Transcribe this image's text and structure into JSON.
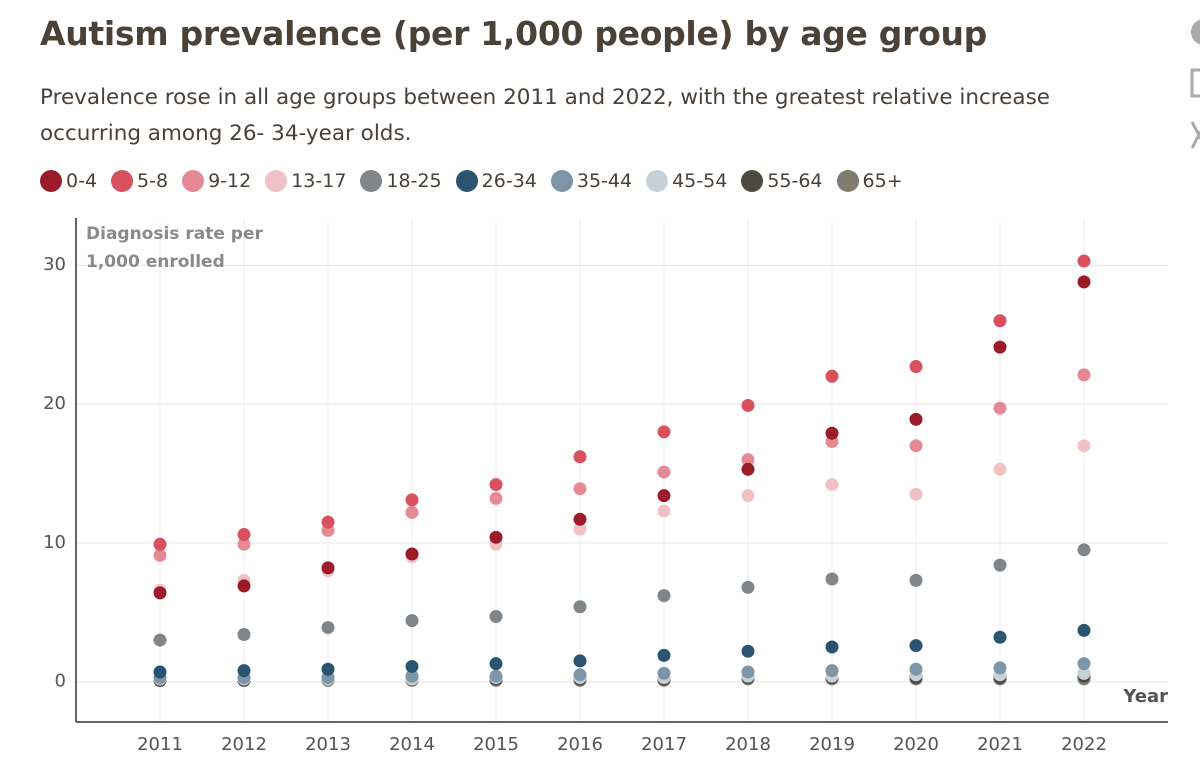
{
  "chart_data": {
    "type": "scatter",
    "title": "Autism prevalence (per 1,000 people) by age group",
    "subtitle": "Prevalence rose in all age groups between 2011 and 2022, with the greatest relative increase occurring among 26- 34-year olds.",
    "y_label": "Diagnosis rate per 1,000 enrolled",
    "x_label": "Year",
    "x": [
      2011,
      2012,
      2013,
      2014,
      2015,
      2016,
      2017,
      2018,
      2019,
      2020,
      2021,
      2022
    ],
    "xlim": [
      2010,
      2023
    ],
    "xticks": [
      2011,
      2012,
      2013,
      2014,
      2015,
      2016,
      2017,
      2018,
      2019,
      2020,
      2021,
      2022
    ],
    "ylim": [
      -2.9,
      33.4
    ],
    "yticks": [
      0,
      10,
      20,
      30
    ],
    "grid": true,
    "series": [
      {
        "name": "0-4",
        "color": "#9b1b2a",
        "values": [
          6.4,
          6.9,
          8.2,
          9.2,
          10.4,
          11.7,
          13.4,
          15.3,
          17.9,
          18.9,
          24.1,
          28.8
        ]
      },
      {
        "name": "5-8",
        "color": "#d9505e",
        "values": [
          9.9,
          10.6,
          11.5,
          13.1,
          14.2,
          16.2,
          18.0,
          19.9,
          22.0,
          22.7,
          26.0,
          30.3
        ]
      },
      {
        "name": "9-12",
        "color": "#e58a94",
        "values": [
          9.1,
          9.9,
          10.9,
          12.2,
          13.2,
          13.9,
          15.1,
          16.0,
          17.3,
          17.0,
          19.7,
          22.1
        ]
      },
      {
        "name": "13-17",
        "color": "#f0c2c6",
        "values": [
          6.6,
          7.3,
          8.0,
          9.0,
          9.9,
          11.0,
          12.3,
          13.4,
          14.2,
          13.5,
          15.3,
          17.0
        ]
      },
      {
        "name": "18-25",
        "color": "#808589",
        "values": [
          3.0,
          3.4,
          3.9,
          4.4,
          4.7,
          5.4,
          6.2,
          6.8,
          7.4,
          7.3,
          8.4,
          9.5
        ]
      },
      {
        "name": "26-34",
        "color": "#2a5470",
        "values": [
          0.7,
          0.8,
          0.9,
          1.1,
          1.3,
          1.5,
          1.9,
          2.2,
          2.5,
          2.6,
          3.2,
          3.7
        ]
      },
      {
        "name": "35-44",
        "color": "#7c96a8",
        "values": [
          0.3,
          0.3,
          0.3,
          0.4,
          0.4,
          0.5,
          0.6,
          0.7,
          0.8,
          0.9,
          1.0,
          1.3
        ]
      },
      {
        "name": "45-54",
        "color": "#c5d0d8",
        "values": [
          0.2,
          0.2,
          0.2,
          0.2,
          0.3,
          0.3,
          0.3,
          0.4,
          0.4,
          0.5,
          0.5,
          0.6
        ]
      },
      {
        "name": "55-64",
        "color": "#4f4a40",
        "values": [
          0.1,
          0.1,
          0.2,
          0.2,
          0.2,
          0.2,
          0.2,
          0.3,
          0.3,
          0.3,
          0.3,
          0.4
        ]
      },
      {
        "name": "65+",
        "color": "#827b70",
        "values": [
          0.1,
          0.1,
          0.1,
          0.1,
          0.1,
          0.1,
          0.1,
          0.2,
          0.2,
          0.2,
          0.2,
          0.2
        ]
      }
    ]
  }
}
